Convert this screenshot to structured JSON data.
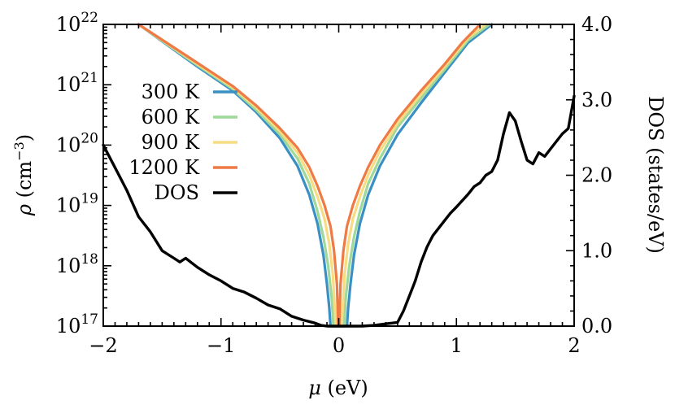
{
  "chart_data": {
    "type": "line",
    "title": "",
    "xlabel": {
      "symbol": "μ",
      "unit": "(eV)"
    },
    "ylabel_left": {
      "symbol": "ρ",
      "unit_prefix": "(cm",
      "unit_exp": "−3",
      "unit_suffix": ")"
    },
    "ylabel_right": "DOS (states/eV)",
    "xlim": [
      -2,
      2
    ],
    "ylim_left": [
      1e+17,
      1e+22
    ],
    "ylim_right": [
      0,
      4
    ],
    "y_left_scale": "log",
    "grid": false,
    "legend_position": "upper-left",
    "x_ticks": [
      {
        "value": -2,
        "label": "−2"
      },
      {
        "value": -1,
        "label": "−1"
      },
      {
        "value": 0,
        "label": "0"
      },
      {
        "value": 1,
        "label": "1"
      },
      {
        "value": 2,
        "label": "2"
      }
    ],
    "y_left_ticks": [
      {
        "exp": 17,
        "base": "10",
        "sup": "17"
      },
      {
        "exp": 18,
        "base": "10",
        "sup": "18"
      },
      {
        "exp": 19,
        "base": "10",
        "sup": "19"
      },
      {
        "exp": 20,
        "base": "10",
        "sup": "20"
      },
      {
        "exp": 21,
        "base": "10",
        "sup": "21"
      },
      {
        "exp": 22,
        "base": "10",
        "sup": "22"
      }
    ],
    "y_right_ticks": [
      {
        "value": 0,
        "label": "0.0"
      },
      {
        "value": 1,
        "label": "1.0"
      },
      {
        "value": 2,
        "label": "2.0"
      },
      {
        "value": 3,
        "label": "3.0"
      },
      {
        "value": 4,
        "label": "4.0"
      }
    ],
    "series": [
      {
        "name": "300 K",
        "color": "#3a8fc4",
        "axis": "left",
        "x": [
          -1.7,
          -1.2,
          -0.9,
          -0.7,
          -0.5,
          -0.35,
          -0.25,
          -0.18,
          -0.13,
          -0.1,
          -0.08,
          -0.07,
          0.07,
          0.08,
          0.1,
          0.13,
          0.18,
          0.25,
          0.35,
          0.5,
          0.7,
          0.9,
          1.1,
          1.3
        ],
        "y": [
          1e+22,
          2e+21,
          8e+20,
          3.5e+20,
          1.3e+20,
          4.5e+19,
          1.5e+19,
          5e+18,
          1.5e+18,
          5e+17,
          2e+17,
          1e+17,
          1e+17,
          2e+17,
          5e+17,
          1.5e+18,
          5e+18,
          1.5e+19,
          4.5e+19,
          1.5e+20,
          5e+20,
          1.6e+21,
          5e+21,
          1e+22
        ]
      },
      {
        "name": "600 K",
        "color": "#9ed89a",
        "axis": "left",
        "x": [
          -1.7,
          -1.2,
          -0.9,
          -0.7,
          -0.5,
          -0.35,
          -0.25,
          -0.18,
          -0.13,
          -0.09,
          -0.06,
          -0.045,
          0.045,
          0.06,
          0.09,
          0.13,
          0.18,
          0.25,
          0.35,
          0.5,
          0.7,
          0.9,
          1.1,
          1.28
        ],
        "y": [
          1e+22,
          2.1e+21,
          8.5e+20,
          3.8e+20,
          1.5e+20,
          6e+19,
          2.3e+19,
          8e+18,
          3e+18,
          1e+18,
          3e+17,
          1e+17,
          1e+17,
          3e+17,
          1e+18,
          3e+18,
          8e+18,
          2.3e+19,
          6e+19,
          2e+20,
          6e+20,
          1.8e+21,
          5.5e+21,
          1e+22
        ]
      },
      {
        "name": "900 K",
        "color": "#f7dc82",
        "axis": "left",
        "x": [
          -1.7,
          -1.2,
          -0.9,
          -0.7,
          -0.5,
          -0.35,
          -0.25,
          -0.18,
          -0.12,
          -0.08,
          -0.05,
          -0.025,
          0.025,
          0.05,
          0.08,
          0.12,
          0.18,
          0.25,
          0.35,
          0.5,
          0.7,
          0.9,
          1.1,
          1.25
        ],
        "y": [
          1e+22,
          2.2e+21,
          9e+20,
          4.2e+20,
          1.7e+20,
          7.5e+19,
          3.2e+19,
          1.4e+19,
          6e+18,
          2.3e+18,
          7e+17,
          1e+17,
          1e+17,
          7e+17,
          2.3e+18,
          6e+18,
          1.4e+19,
          3.2e+19,
          8e+19,
          2.3e+20,
          7e+20,
          2e+21,
          6e+21,
          1e+22
        ]
      },
      {
        "name": "1200 K",
        "color": "#ee7a45",
        "axis": "left",
        "x": [
          -1.7,
          -1.2,
          -0.9,
          -0.7,
          -0.5,
          -0.35,
          -0.25,
          -0.18,
          -0.12,
          -0.07,
          -0.04,
          -0.015,
          -0.005,
          0.005,
          0.015,
          0.04,
          0.07,
          0.12,
          0.18,
          0.25,
          0.35,
          0.5,
          0.7,
          0.9,
          1.05,
          1.2
        ],
        "y": [
          1e+22,
          2.3e+21,
          9.5e+20,
          4.5e+20,
          1.9e+20,
          9e+19,
          4.3e+19,
          2.1e+19,
          1e+19,
          4.5e+18,
          1.8e+18,
          5e+17,
          1e+17,
          1e+17,
          5e+17,
          1.8e+18,
          4.5e+18,
          1e+19,
          2.1e+19,
          4.3e+19,
          1e+20,
          2.7e+20,
          8e+20,
          2.2e+21,
          5e+21,
          1e+22
        ]
      },
      {
        "name": "DOS",
        "color": "#000000",
        "axis": "right",
        "x": [
          -2.0,
          -1.9,
          -1.8,
          -1.7,
          -1.6,
          -1.5,
          -1.4,
          -1.35,
          -1.3,
          -1.2,
          -1.1,
          -1.0,
          -0.9,
          -0.8,
          -0.7,
          -0.6,
          -0.5,
          -0.4,
          -0.3,
          -0.2,
          -0.15,
          -0.1,
          0.0,
          0.1,
          0.2,
          0.3,
          0.4,
          0.5,
          0.55,
          0.6,
          0.65,
          0.7,
          0.75,
          0.8,
          0.85,
          0.9,
          0.95,
          1.0,
          1.1,
          1.15,
          1.2,
          1.25,
          1.3,
          1.35,
          1.4,
          1.45,
          1.5,
          1.55,
          1.6,
          1.65,
          1.7,
          1.75,
          1.8,
          1.9,
          1.95,
          2.0
        ],
        "y": [
          2.4,
          2.1,
          1.8,
          1.45,
          1.25,
          1.0,
          0.9,
          0.85,
          0.9,
          0.78,
          0.68,
          0.6,
          0.5,
          0.45,
          0.37,
          0.28,
          0.23,
          0.13,
          0.08,
          0.04,
          0.01,
          0.0,
          0.0,
          0.0,
          0.0,
          0.01,
          0.03,
          0.05,
          0.2,
          0.4,
          0.6,
          0.85,
          1.05,
          1.2,
          1.3,
          1.4,
          1.5,
          1.58,
          1.75,
          1.85,
          1.9,
          2.0,
          2.05,
          2.2,
          2.55,
          2.83,
          2.72,
          2.45,
          2.2,
          2.15,
          2.3,
          2.25,
          2.35,
          2.55,
          2.62,
          3.05
        ]
      }
    ]
  }
}
